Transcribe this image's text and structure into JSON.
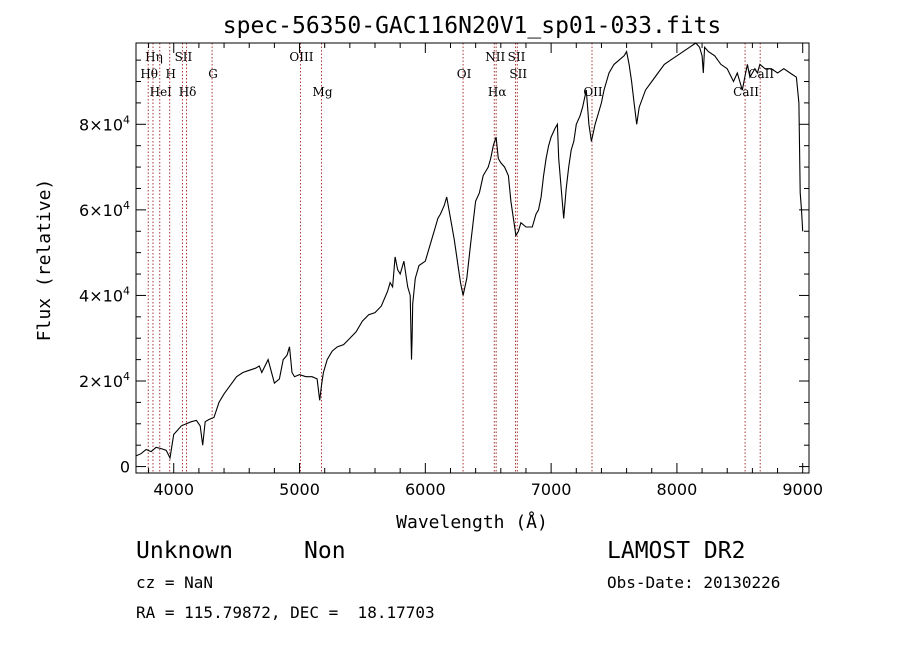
{
  "chart_data": {
    "type": "line",
    "title": "spec-56350-GAC116N20V1_sp01-033.fits",
    "xlabel": "Wavelength (Å)",
    "ylabel": "Flux (relative)",
    "xlim": [
      3700,
      9050
    ],
    "ylim": [
      -1500,
      99000
    ],
    "x_ticks": [
      4000,
      5000,
      6000,
      7000,
      8000,
      9000
    ],
    "x_tick_labels": [
      "4000",
      "5000",
      "6000",
      "7000",
      "8000",
      "9000"
    ],
    "y_ticks": [
      {
        "value": 0,
        "mantissa": "0",
        "exponent": ""
      },
      {
        "value": 20000,
        "mantissa": "2×10",
        "exponent": "4"
      },
      {
        "value": 40000,
        "mantissa": "4×10",
        "exponent": "4"
      },
      {
        "value": 60000,
        "mantissa": "6×10",
        "exponent": "4"
      },
      {
        "value": 80000,
        "mantissa": "8×10",
        "exponent": "4"
      }
    ],
    "series": [
      {
        "x": [
          3700,
          3740,
          3780,
          3820,
          3860,
          3900,
          3940,
          3970,
          4000,
          4030,
          4060,
          4100,
          4140,
          4180,
          4210,
          4230,
          4250,
          4280,
          4320,
          4360,
          4400,
          4450,
          4500,
          4550,
          4600,
          4650,
          4680,
          4700,
          4750,
          4800,
          4840,
          4870,
          4900,
          4920,
          4940,
          4960,
          5000,
          5050,
          5100,
          5140,
          5160,
          5175,
          5190,
          5220,
          5260,
          5300,
          5350,
          5400,
          5450,
          5500,
          5550,
          5600,
          5650,
          5700,
          5720,
          5740,
          5760,
          5780,
          5800,
          5830,
          5860,
          5880,
          5890,
          5895,
          5900,
          5920,
          5950,
          6000,
          6050,
          6080,
          6100,
          6120,
          6150,
          6170,
          6200,
          6230,
          6260,
          6280,
          6300,
          6330,
          6360,
          6380,
          6400,
          6430,
          6460,
          6480,
          6500,
          6520,
          6540,
          6563,
          6580,
          6600,
          6630,
          6660,
          6680,
          6700,
          6720,
          6740,
          6760,
          6800,
          6850,
          6880,
          6900,
          6920,
          6940,
          6960,
          6980,
          7000,
          7030,
          7050,
          7060,
          7080,
          7100,
          7120,
          7140,
          7160,
          7180,
          7200,
          7230,
          7250,
          7280,
          7300,
          7320,
          7350,
          7380,
          7400,
          7420,
          7440,
          7460,
          7500,
          7540,
          7580,
          7600,
          7620,
          7640,
          7660,
          7680,
          7700,
          7750,
          7800,
          7850,
          7900,
          7950,
          8000,
          8050,
          8100,
          8150,
          8180,
          8200,
          8210,
          8220,
          8250,
          8300,
          8350,
          8400,
          8450,
          8480,
          8500,
          8520,
          8540,
          8560,
          8580,
          8600,
          8620,
          8640,
          8660,
          8700,
          8750,
          8800,
          8850,
          8900,
          8950,
          8970,
          8980,
          8990,
          9000
        ],
        "y": [
          2500,
          3000,
          4000,
          3500,
          4500,
          4200,
          3800,
          2000,
          7500,
          8500,
          9500,
          10000,
          10500,
          10800,
          9500,
          5000,
          10500,
          11000,
          11500,
          15000,
          17000,
          19000,
          21000,
          22000,
          22500,
          23000,
          23500,
          22000,
          25000,
          19500,
          20500,
          25000,
          26000,
          28000,
          22000,
          21000,
          21500,
          21000,
          21000,
          20500,
          15500,
          19000,
          22000,
          25000,
          27000,
          28000,
          28500,
          30000,
          31500,
          34000,
          35500,
          36000,
          37500,
          41000,
          43000,
          42000,
          49000,
          46000,
          45000,
          48000,
          42000,
          40000,
          25000,
          30000,
          38000,
          44000,
          47000,
          48000,
          53000,
          56000,
          58000,
          59000,
          61000,
          63000,
          58000,
          53000,
          47000,
          43000,
          40000,
          44000,
          52000,
          57000,
          62000,
          64000,
          68000,
          69000,
          70000,
          72000,
          75000,
          77000,
          72000,
          71000,
          70000,
          68000,
          62000,
          58000,
          54000,
          55000,
          57000,
          56000,
          56000,
          59000,
          60000,
          63000,
          68000,
          72000,
          75000,
          77000,
          79000,
          80000,
          72000,
          65000,
          58000,
          65000,
          70000,
          74000,
          76000,
          80000,
          82000,
          84000,
          88000,
          80000,
          76000,
          80000,
          83000,
          85000,
          88000,
          90000,
          92000,
          94000,
          95000,
          96000,
          97000,
          94000,
          90000,
          85000,
          80000,
          84000,
          88000,
          90000,
          92000,
          94000,
          95000,
          96000,
          97000,
          98000,
          99000,
          98000,
          96000,
          92000,
          98000,
          97000,
          96000,
          94000,
          93000,
          90000,
          92000,
          90000,
          88000,
          91000,
          94000,
          91000,
          92000,
          93000,
          92000,
          94000,
          93000,
          93000,
          92000,
          93000,
          92000,
          91000,
          85000,
          64000,
          60000,
          55000
        ]
      }
    ],
    "lines": [
      {
        "label": "Hη",
        "x": 3835,
        "row": 0
      },
      {
        "label": "Hθ",
        "x": 3797,
        "row": 1
      },
      {
        "label": "HeI",
        "x": 3889,
        "row": 2
      },
      {
        "label": "H",
        "x": 3968,
        "row": 1
      },
      {
        "label": "SII",
        "x": 4069,
        "row": 0
      },
      {
        "label": "Hδ",
        "x": 4102,
        "row": 2
      },
      {
        "label": "G",
        "x": 4305,
        "row": 1
      },
      {
        "label": "OIII",
        "x": 5007,
        "row": 0
      },
      {
        "label": "Mg",
        "x": 5175,
        "row": 2
      },
      {
        "label": "OI",
        "x": 6300,
        "row": 1
      },
      {
        "label": "NII",
        "x": 6548,
        "row": 0
      },
      {
        "label": "Hα",
        "x": 6563,
        "row": 2
      },
      {
        "label": "SII",
        "x": 6717,
        "row": 0
      },
      {
        "label": "SII",
        "x": 6731,
        "row": 1
      },
      {
        "label": "OII",
        "x": 7325,
        "row": 2
      },
      {
        "label": "CaII",
        "x": 8542,
        "row": 2
      },
      {
        "label": "CaII",
        "x": 8662,
        "row": 1
      }
    ],
    "grid": false
  },
  "info": {
    "class": "Unknown",
    "subclass": "Non",
    "cz": "cz = NaN",
    "coords": "RA = 115.79872, DEC =  18.17703",
    "survey": "LAMOST DR2",
    "obsdate": "Obs-Date: 20130226"
  }
}
